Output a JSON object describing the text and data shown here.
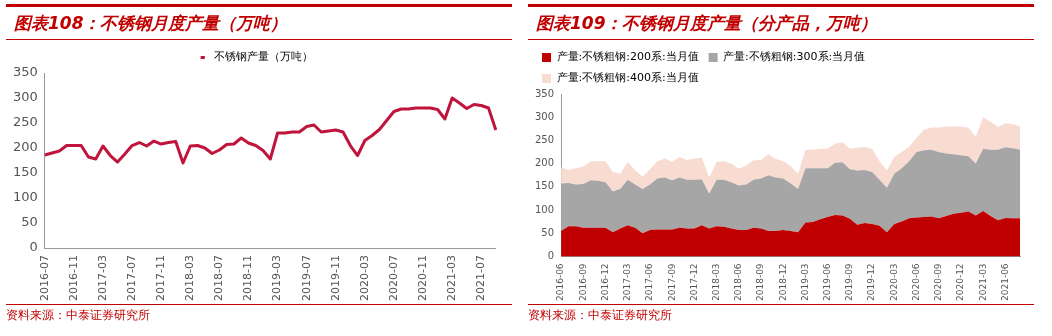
{
  "chart_data": [
    {
      "type": "line",
      "title": "图表108：不锈钢月度产量（万吨）",
      "annotations": [
        "资料来源：中泰证券研究所"
      ],
      "categories": [
        "2016-07",
        null,
        null,
        null,
        "2016-11",
        null,
        null,
        null,
        "2017-03",
        null,
        null,
        null,
        "2017-07",
        null,
        null,
        null,
        "2017-11",
        null,
        null,
        null,
        "2018-03",
        null,
        null,
        null,
        "2018-07",
        null,
        null,
        null,
        "2018-11",
        null,
        null,
        null,
        "2019-03",
        null,
        null,
        null,
        "2019-07",
        null,
        null,
        null,
        "2019-11",
        null,
        null,
        null,
        "2020-03",
        null,
        null,
        null,
        "2020-07",
        null,
        null,
        null,
        "2020-11",
        null,
        null,
        null,
        "2021-03",
        null,
        null,
        null,
        "2021-07",
        null,
        null
      ],
      "series": [
        {
          "name": "不锈钢产量（万吨）",
          "color": "#c0143c",
          "values": [
            186,
            190,
            194,
            205,
            205,
            205,
            182,
            178,
            204,
            185,
            172,
            188,
            205,
            211,
            204,
            214,
            208,
            211,
            213,
            170,
            204,
            205,
            200,
            189,
            196,
            207,
            208,
            220,
            210,
            205,
            195,
            178,
            230,
            230,
            232,
            232,
            243,
            246,
            232,
            234,
            236,
            232,
            205,
            185,
            215,
            225,
            237,
            255,
            273,
            278,
            278,
            280,
            280,
            280,
            277,
            258,
            300,
            290,
            279,
            287,
            285,
            280,
            236
          ]
        }
      ],
      "ylim": [
        0,
        350
      ],
      "yticks": [
        0,
        50,
        100,
        150,
        200,
        250,
        300,
        350
      ],
      "grid": false,
      "legend": "top",
      "marker": "none",
      "line_style": "solid"
    },
    {
      "type": "area",
      "title": "图表109：不锈钢月度产量（分产品，万吨）",
      "annotations": [
        "资料来源：中泰证券研究所"
      ],
      "stacked": true,
      "categories": [
        "2016-06",
        null,
        null,
        "2016-09",
        null,
        null,
        "2016-12",
        null,
        null,
        "2017-03",
        null,
        null,
        "2017-06",
        null,
        null,
        "2017-09",
        null,
        null,
        "2017-12",
        null,
        null,
        "2018-03",
        null,
        null,
        "2018-06",
        null,
        null,
        "2018-09",
        null,
        null,
        "2018-12",
        null,
        null,
        "2019-03",
        null,
        null,
        "2019-06",
        null,
        null,
        "2019-09",
        null,
        null,
        "2019-12",
        null,
        null,
        "2020-03",
        null,
        null,
        "2020-06",
        null,
        null,
        "2020-09",
        null,
        null,
        "2020-12",
        null,
        null,
        "2021-03",
        null,
        null,
        "2021-06",
        null,
        null
      ],
      "series": [
        {
          "name": "产量:不锈粗钢:200系:当月值",
          "color": "#c00000",
          "values": [
            55,
            65,
            65,
            62,
            62,
            62,
            62,
            52,
            60,
            67,
            62,
            50,
            57,
            58,
            58,
            58,
            62,
            60,
            60,
            67,
            60,
            65,
            64,
            60,
            57,
            57,
            62,
            60,
            55,
            55,
            57,
            55,
            52,
            73,
            74,
            80,
            85,
            89,
            88,
            81,
            68,
            72,
            70,
            66,
            52,
            70,
            75,
            82,
            84,
            85,
            86,
            82,
            87,
            92,
            94,
            97,
            88,
            98,
            87,
            78,
            83,
            82,
            82
          ]
        },
        {
          "name": "产量:不锈粗钢:300系:当月值",
          "color": "#a6a6a6",
          "values": [
            102,
            93,
            90,
            94,
            102,
            101,
            98,
            88,
            86,
            98,
            93,
            95,
            98,
            110,
            112,
            106,
            108,
            105,
            105,
            99,
            75,
            100,
            101,
            100,
            96,
            98,
            103,
            108,
            120,
            115,
            111,
            102,
            93,
            117,
            116,
            110,
            105,
            113,
            115,
            107,
            117,
            114,
            112,
            99,
            96,
            108,
            115,
            123,
            141,
            144,
            144,
            143,
            135,
            128,
            124,
            119,
            112,
            134,
            143,
            152,
            152,
            151,
            148
          ]
        },
        {
          "name": "产量:不锈粗钢:400系:当月值",
          "color": "#f8dcd2",
          "values": [
            35,
            28,
            35,
            38,
            41,
            42,
            45,
            42,
            32,
            39,
            30,
            27,
            33,
            37,
            41,
            40,
            44,
            43,
            46,
            47,
            35,
            39,
            40,
            40,
            36,
            41,
            42,
            40,
            45,
            40,
            37,
            38,
            33,
            40,
            40,
            42,
            42,
            41,
            43,
            44,
            49,
            50,
            50,
            40,
            37,
            37,
            35,
            32,
            30,
            44,
            48,
            53,
            58,
            60,
            62,
            61,
            58,
            68,
            60,
            49,
            52,
            52,
            50
          ]
        }
      ],
      "ylim": [
        0,
        350
      ],
      "yticks": [
        0,
        50,
        100,
        150,
        200,
        250,
        300,
        350
      ],
      "grid": false,
      "legend": "top"
    }
  ]
}
